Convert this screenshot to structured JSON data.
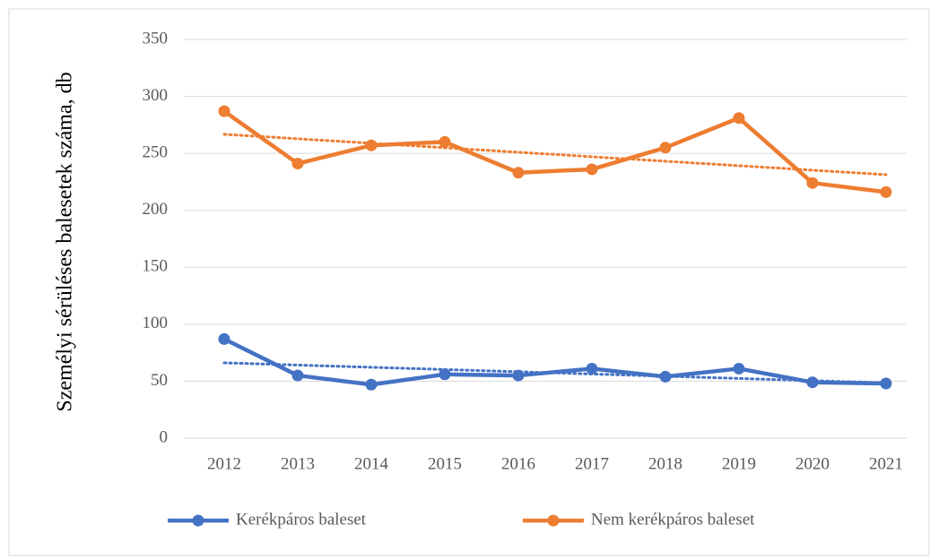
{
  "chart_data": {
    "type": "line",
    "y_axis_label": "Személyi sérüléses balesetek száma, db",
    "categories": [
      "2012",
      "2013",
      "2014",
      "2015",
      "2016",
      "2017",
      "2018",
      "2019",
      "2020",
      "2021"
    ],
    "series": [
      {
        "name": "Kerékpáros baleset",
        "color": "#4472c4",
        "values": [
          87,
          55,
          47,
          56,
          55,
          61,
          54,
          61,
          49,
          48
        ]
      },
      {
        "name": "Nem kerékpáros baleset",
        "color": "#ed7d31",
        "values": [
          287,
          241,
          257,
          260,
          233,
          236,
          255,
          281,
          224,
          216
        ]
      }
    ],
    "ylim": [
      0,
      350
    ],
    "yticks": [
      0,
      50,
      100,
      150,
      200,
      250,
      300,
      350
    ],
    "grid": true,
    "trendline": true,
    "legend": "bottom"
  }
}
